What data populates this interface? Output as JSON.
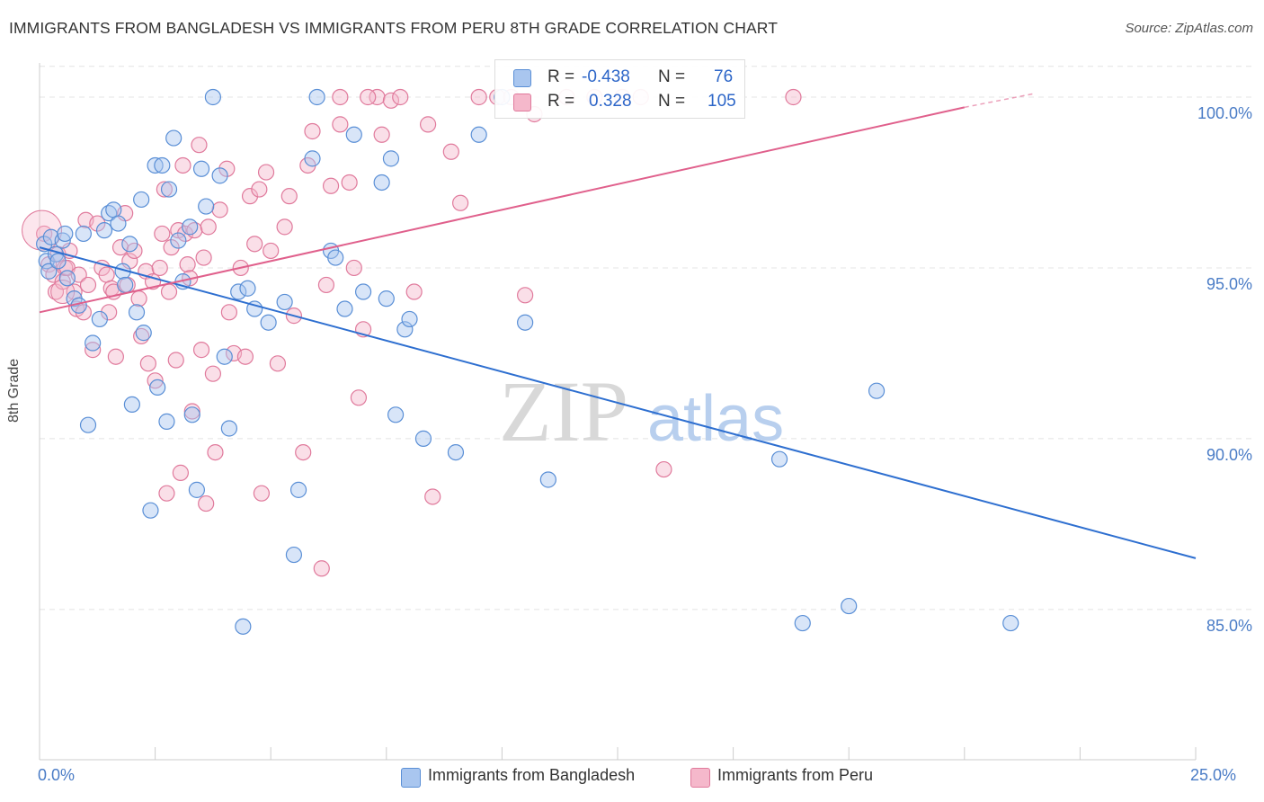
{
  "title": "IMMIGRANTS FROM BANGLADESH VS IMMIGRANTS FROM PERU 8TH GRADE CORRELATION CHART",
  "source": "Source: ZipAtlas.com",
  "watermark": {
    "zip": "ZIP",
    "atlas": "atlas"
  },
  "legend_box": {
    "rows": [
      {
        "r_label": "R =",
        "r_value": "-0.438",
        "n_label": "N =",
        "n_value": "76"
      },
      {
        "r_label": "R =",
        "r_value": "0.328",
        "n_label": "N =",
        "n_value": "105"
      }
    ]
  },
  "bottom_legend": [
    "Immigrants from Bangladesh",
    "Immigrants from Peru"
  ],
  "colors": {
    "bangladesh_fill": "#a9c6ef",
    "bangladesh_stroke": "#5a8fd6",
    "bangladesh_line": "#2e6fd0",
    "peru_fill": "#f5b8cb",
    "peru_stroke": "#e07a9c",
    "peru_line": "#e0608c",
    "axis_text": "#4a7cc6",
    "grid": "#e4e4e4"
  },
  "chart_data": {
    "type": "scatter",
    "title": "IMMIGRANTS FROM BANGLADESH VS IMMIGRANTS FROM PERU 8TH GRADE CORRELATION CHART",
    "xlabel": "",
    "ylabel": "8th Grade",
    "xlim": [
      0,
      25
    ],
    "ylim": [
      80.6,
      101.0
    ],
    "x_tick_labels": [
      "0.0%",
      "25.0%"
    ],
    "y_ticks": [
      85,
      90,
      95,
      100
    ],
    "y_tick_labels": [
      "85.0%",
      "90.0%",
      "95.0%",
      "100.0%"
    ],
    "grid": true,
    "series": [
      {
        "name": "Immigrants from Bangladesh",
        "R": -0.438,
        "N": 76,
        "trend": {
          "x": [
            0,
            25
          ],
          "y": [
            95.6,
            86.5
          ]
        },
        "points": [
          [
            0.1,
            95.7
          ],
          [
            0.15,
            95.2
          ],
          [
            0.2,
            94.9
          ],
          [
            0.25,
            95.9
          ],
          [
            0.35,
            95.4
          ],
          [
            0.4,
            95.2
          ],
          [
            0.5,
            95.8
          ],
          [
            0.55,
            96.0
          ],
          [
            0.6,
            94.7
          ],
          [
            0.75,
            94.1
          ],
          [
            0.85,
            93.9
          ],
          [
            0.95,
            96.0
          ],
          [
            1.05,
            90.4
          ],
          [
            1.15,
            92.8
          ],
          [
            1.3,
            93.5
          ],
          [
            1.4,
            96.1
          ],
          [
            1.5,
            96.6
          ],
          [
            1.6,
            96.7
          ],
          [
            1.7,
            96.3
          ],
          [
            1.8,
            94.9
          ],
          [
            1.85,
            94.5
          ],
          [
            1.95,
            95.7
          ],
          [
            2.0,
            91.0
          ],
          [
            2.1,
            93.7
          ],
          [
            2.2,
            97.0
          ],
          [
            2.25,
            93.1
          ],
          [
            2.4,
            87.9
          ],
          [
            2.5,
            98.0
          ],
          [
            2.55,
            91.5
          ],
          [
            2.65,
            98.0
          ],
          [
            2.75,
            90.5
          ],
          [
            2.8,
            97.3
          ],
          [
            2.9,
            98.8
          ],
          [
            3.0,
            95.8
          ],
          [
            3.1,
            94.6
          ],
          [
            3.25,
            96.2
          ],
          [
            3.3,
            90.7
          ],
          [
            3.4,
            88.5
          ],
          [
            3.5,
            97.9
          ],
          [
            3.6,
            96.8
          ],
          [
            3.75,
            100.0
          ],
          [
            3.9,
            97.7
          ],
          [
            4.0,
            92.4
          ],
          [
            4.1,
            90.3
          ],
          [
            4.3,
            94.3
          ],
          [
            4.4,
            84.5
          ],
          [
            4.5,
            94.4
          ],
          [
            4.65,
            93.8
          ],
          [
            4.95,
            93.4
          ],
          [
            5.3,
            94.0
          ],
          [
            5.5,
            86.6
          ],
          [
            5.6,
            88.5
          ],
          [
            5.9,
            98.2
          ],
          [
            6.0,
            100.0
          ],
          [
            6.3,
            95.5
          ],
          [
            6.4,
            95.3
          ],
          [
            6.6,
            93.8
          ],
          [
            6.8,
            98.9
          ],
          [
            7.0,
            94.3
          ],
          [
            7.4,
            97.5
          ],
          [
            7.5,
            94.1
          ],
          [
            7.6,
            98.2
          ],
          [
            7.7,
            90.7
          ],
          [
            7.9,
            93.2
          ],
          [
            8.0,
            93.5
          ],
          [
            8.3,
            90.0
          ],
          [
            9.0,
            89.6
          ],
          [
            9.5,
            98.9
          ],
          [
            10.0,
            100.0
          ],
          [
            10.5,
            93.4
          ],
          [
            11.0,
            88.8
          ],
          [
            16.0,
            89.4
          ],
          [
            16.5,
            84.6
          ],
          [
            17.5,
            85.1
          ],
          [
            18.1,
            91.4
          ],
          [
            21.0,
            84.6
          ]
        ]
      },
      {
        "name": "Immigrants from Peru",
        "R": 0.328,
        "N": 105,
        "trend": {
          "x": [
            0,
            20
          ],
          "y": [
            93.7,
            99.7
          ]
        },
        "trend_dashed": {
          "x": [
            20,
            21.5
          ],
          "y": [
            99.7,
            100.1
          ]
        },
        "points": [
          [
            0.1,
            96.0
          ],
          [
            0.2,
            95.1
          ],
          [
            0.3,
            94.8
          ],
          [
            0.35,
            94.3
          ],
          [
            0.4,
            95.4
          ],
          [
            0.5,
            94.6
          ],
          [
            0.55,
            95.0
          ],
          [
            0.6,
            95.0
          ],
          [
            0.65,
            95.5
          ],
          [
            0.75,
            94.3
          ],
          [
            0.8,
            93.8
          ],
          [
            0.85,
            94.8
          ],
          [
            0.95,
            93.7
          ],
          [
            1.0,
            96.4
          ],
          [
            1.05,
            94.5
          ],
          [
            1.15,
            92.6
          ],
          [
            1.25,
            96.3
          ],
          [
            1.35,
            95.0
          ],
          [
            1.45,
            94.8
          ],
          [
            1.5,
            93.7
          ],
          [
            1.55,
            94.4
          ],
          [
            1.6,
            94.3
          ],
          [
            1.65,
            92.4
          ],
          [
            1.75,
            95.6
          ],
          [
            1.85,
            96.6
          ],
          [
            1.9,
            94.5
          ],
          [
            1.95,
            95.2
          ],
          [
            2.05,
            95.5
          ],
          [
            2.15,
            94.1
          ],
          [
            2.2,
            93.0
          ],
          [
            2.3,
            94.9
          ],
          [
            2.35,
            92.2
          ],
          [
            2.45,
            94.6
          ],
          [
            2.5,
            91.7
          ],
          [
            2.6,
            95.0
          ],
          [
            2.65,
            96.0
          ],
          [
            2.7,
            97.3
          ],
          [
            2.75,
            88.4
          ],
          [
            2.8,
            94.3
          ],
          [
            2.85,
            95.6
          ],
          [
            2.95,
            92.3
          ],
          [
            3.0,
            96.1
          ],
          [
            3.05,
            89.0
          ],
          [
            3.1,
            98.0
          ],
          [
            3.15,
            96.0
          ],
          [
            3.2,
            95.1
          ],
          [
            3.25,
            94.7
          ],
          [
            3.3,
            90.8
          ],
          [
            3.35,
            96.1
          ],
          [
            3.45,
            98.6
          ],
          [
            3.5,
            92.6
          ],
          [
            3.55,
            95.3
          ],
          [
            3.6,
            88.1
          ],
          [
            3.65,
            96.2
          ],
          [
            3.75,
            91.9
          ],
          [
            3.8,
            89.6
          ],
          [
            3.9,
            96.7
          ],
          [
            4.05,
            97.9
          ],
          [
            4.1,
            93.7
          ],
          [
            4.2,
            92.5
          ],
          [
            4.35,
            95.0
          ],
          [
            4.45,
            92.4
          ],
          [
            4.55,
            97.1
          ],
          [
            4.65,
            95.7
          ],
          [
            4.75,
            97.3
          ],
          [
            4.8,
            88.4
          ],
          [
            4.9,
            97.8
          ],
          [
            5.0,
            95.5
          ],
          [
            5.15,
            92.2
          ],
          [
            5.3,
            96.2
          ],
          [
            5.4,
            97.1
          ],
          [
            5.5,
            93.6
          ],
          [
            5.7,
            89.6
          ],
          [
            5.8,
            98.0
          ],
          [
            5.9,
            99.0
          ],
          [
            6.1,
            86.2
          ],
          [
            6.2,
            94.5
          ],
          [
            6.3,
            97.4
          ],
          [
            6.5,
            99.2
          ],
          [
            6.7,
            97.5
          ],
          [
            6.8,
            95.0
          ],
          [
            6.9,
            91.2
          ],
          [
            7.0,
            93.2
          ],
          [
            7.3,
            100.0
          ],
          [
            7.4,
            98.9
          ],
          [
            7.6,
            99.9
          ],
          [
            7.8,
            100.0
          ],
          [
            8.1,
            94.3
          ],
          [
            8.4,
            99.2
          ],
          [
            8.5,
            88.3
          ],
          [
            8.9,
            98.4
          ],
          [
            9.1,
            96.9
          ],
          [
            9.5,
            100.0
          ],
          [
            9.9,
            100.0
          ],
          [
            10.5,
            94.2
          ],
          [
            10.7,
            99.5
          ],
          [
            11.4,
            100.0
          ],
          [
            12.6,
            100.0
          ],
          [
            13.0,
            100.0
          ],
          [
            13.5,
            89.1
          ],
          [
            16.3,
            100.0
          ],
          [
            6.5,
            100.0
          ],
          [
            10.2,
            100.0
          ],
          [
            12.0,
            100.0
          ],
          [
            7.1,
            100.0
          ]
        ]
      }
    ]
  }
}
